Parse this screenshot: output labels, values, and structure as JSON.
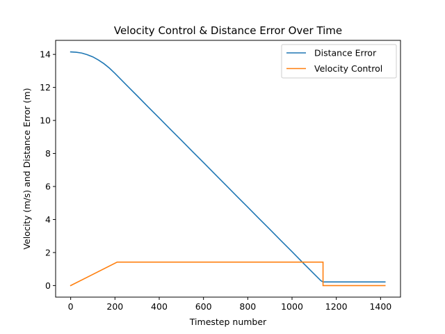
{
  "chart_data": {
    "type": "line",
    "title": "Velocity Control & Distance Error Over Time",
    "xlabel": "Timestep number",
    "ylabel": "Velocity (m/s) and Distance Error (m)",
    "xlim": [
      -68,
      1490
    ],
    "ylim": [
      -0.7,
      14.85
    ],
    "xticks": [
      0,
      200,
      400,
      600,
      800,
      1000,
      1200,
      1400
    ],
    "yticks": [
      0,
      2,
      4,
      6,
      8,
      10,
      12,
      14
    ],
    "grid": false,
    "legend_position": "top-right",
    "series": [
      {
        "name": "Distance Error",
        "color": "#1f77b4",
        "x": [
          0,
          25,
          50,
          75,
          100,
          125,
          150,
          175,
          200,
          250,
          300,
          350,
          400,
          450,
          500,
          550,
          600,
          650,
          700,
          750,
          800,
          850,
          900,
          950,
          1000,
          1050,
          1100,
          1130,
          1140,
          1150,
          1200,
          1300,
          1420
        ],
        "y": [
          14.15,
          14.13,
          14.08,
          13.98,
          13.85,
          13.66,
          13.44,
          13.17,
          12.85,
          12.17,
          11.5,
          10.82,
          10.15,
          9.47,
          8.8,
          8.12,
          7.45,
          6.77,
          6.1,
          5.42,
          4.75,
          4.07,
          3.4,
          2.72,
          2.05,
          1.37,
          0.7,
          0.3,
          0.22,
          0.22,
          0.22,
          0.22,
          0.22
        ]
      },
      {
        "name": "Velocity Control",
        "color": "#ff7f0e",
        "x": [
          0,
          210,
          1140,
          1140,
          1420
        ],
        "y": [
          0.0,
          1.42,
          1.42,
          0.0,
          0.0
        ]
      }
    ]
  }
}
